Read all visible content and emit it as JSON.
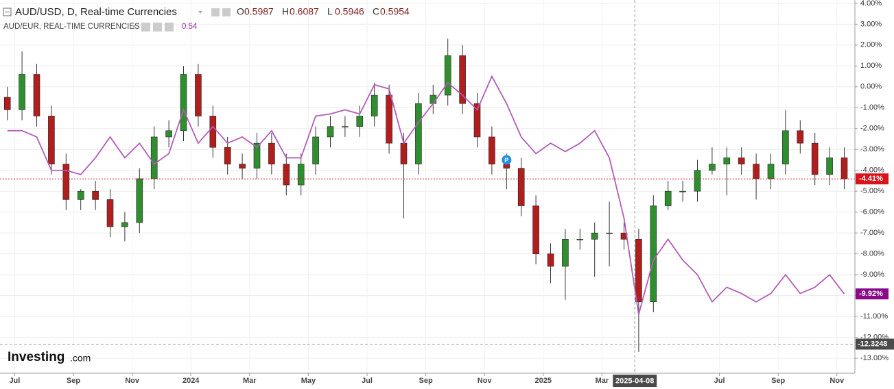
{
  "chart_data": {
    "type": "candlestick",
    "categories": [
      null,
      "Jul",
      null,
      null,
      null,
      "Sep",
      null,
      null,
      null,
      "Nov",
      null,
      null,
      null,
      "2024",
      null,
      null,
      null,
      "Mar",
      null,
      null,
      null,
      "May",
      null,
      null,
      null,
      "Jul",
      null,
      null,
      null,
      "Sep",
      null,
      null,
      null,
      "Nov",
      null,
      null,
      null,
      "2025",
      null,
      null,
      null,
      "Mar",
      null,
      "2025-04-08",
      null,
      null,
      null,
      null,
      null,
      "Jul",
      null,
      null,
      null,
      "Sep",
      null,
      null,
      null,
      "Nov"
    ],
    "series": [
      {
        "name": "AUD/USD, D, Real-time Currencies",
        "type": "candlestick",
        "up_color": "#2f8f2f",
        "down_color": "#b01e1e",
        "wick_color": "#333333",
        "ohlc_legend": [
          {
            "label": "O",
            "value": 0.5987
          },
          {
            "label": "H",
            "value": 0.6087
          },
          {
            "label": "L",
            "value": 0.5946
          },
          {
            "label": "C",
            "value": 0.5954
          }
        ],
        "open": [
          -0.5,
          -1.1,
          0.6,
          -1.4,
          -3.7,
          -5.4,
          -5.0,
          -5.4,
          -6.7,
          -6.5,
          -4.4,
          -2.4,
          -2.1,
          0.6,
          -1.4,
          -2.9,
          -3.7,
          -3.9,
          -2.7,
          -3.7,
          -4.7,
          -3.7,
          -2.4,
          -1.9,
          -1.9,
          -1.4,
          -0.4,
          -2.7,
          -3.7,
          -0.8,
          -0.4,
          1.5,
          -0.8,
          -2.4,
          -3.7,
          -3.9,
          -5.7,
          -8.0,
          -8.6,
          -7.3,
          -7.3,
          -7.0,
          -7.0,
          -7.3,
          -10.3,
          -5.7,
          -5.0,
          -5.0,
          -4.0,
          -3.7,
          -3.4,
          -3.7,
          -4.4,
          -3.7,
          -2.1,
          -2.7,
          -4.2,
          -3.4
        ],
        "high": [
          0.0,
          1.7,
          1.1,
          -0.9,
          -3.2,
          -4.9,
          -4.5,
          -4.9,
          -6.0,
          -3.9,
          -1.9,
          -1.6,
          1.0,
          1.1,
          -0.9,
          -2.4,
          -3.2,
          -2.2,
          -2.2,
          -3.2,
          -3.2,
          -1.9,
          -1.4,
          -1.4,
          -0.9,
          0.2,
          0.1,
          -2.2,
          -0.3,
          0.1,
          2.3,
          2.0,
          -0.3,
          -1.9,
          -3.2,
          -3.4,
          -5.2,
          -7.5,
          -6.8,
          -6.8,
          -6.5,
          -5.5,
          -6.5,
          -6.8,
          -5.2,
          -4.5,
          -4.5,
          -3.5,
          -2.9,
          -2.9,
          -2.9,
          -3.2,
          -3.2,
          -1.1,
          -1.6,
          -2.2,
          -2.9,
          -2.9
        ],
        "low": [
          -1.6,
          -1.6,
          -1.9,
          -4.2,
          -5.9,
          -5.9,
          -5.9,
          -7.2,
          -7.4,
          -7.0,
          -4.9,
          -2.9,
          -2.6,
          -1.9,
          -3.4,
          -4.2,
          -4.4,
          -4.4,
          -4.2,
          -5.2,
          -5.2,
          -4.2,
          -2.9,
          -2.4,
          -2.4,
          -1.9,
          -3.2,
          -6.3,
          -4.2,
          -1.3,
          -0.9,
          -1.3,
          -2.9,
          -4.2,
          -4.9,
          -6.2,
          -8.5,
          -9.4,
          -10.2,
          -7.8,
          -9.1,
          -8.6,
          -7.8,
          -12.7,
          -10.8,
          -5.9,
          -5.5,
          -5.5,
          -4.2,
          -5.2,
          -4.2,
          -5.4,
          -4.9,
          -4.2,
          -3.2,
          -4.7,
          -4.7,
          -4.9
        ],
        "close": [
          -1.1,
          0.6,
          -1.4,
          -3.7,
          -5.4,
          -5.0,
          -5.4,
          -6.7,
          -6.5,
          -4.4,
          -2.4,
          -2.1,
          0.6,
          -1.4,
          -2.9,
          -3.7,
          -3.9,
          -2.7,
          -3.7,
          -4.7,
          -3.7,
          -2.4,
          -1.9,
          -1.9,
          -1.4,
          -0.4,
          -2.7,
          -3.7,
          -0.8,
          -0.4,
          1.5,
          -0.8,
          -2.4,
          -3.7,
          -3.9,
          -5.7,
          -8.0,
          -8.6,
          -7.3,
          -7.3,
          -7.0,
          -7.0,
          -7.3,
          -10.3,
          -5.7,
          -5.0,
          -5.0,
          -4.0,
          -3.7,
          -3.4,
          -3.7,
          -4.4,
          -3.7,
          -2.1,
          -2.7,
          -4.2,
          -3.4,
          -4.41
        ],
        "last_label": "-4.41%",
        "last_color": "#d9141c"
      },
      {
        "name": "AUD/EUR, REAL-TIME CURRENCIES",
        "type": "line",
        "color": "#b35cb8",
        "legend_value": 0.54,
        "values": [
          -2.1,
          -2.1,
          -2.4,
          -4.0,
          -4.0,
          -4.2,
          -3.4,
          -2.4,
          -3.4,
          -2.7,
          -3.7,
          -3.2,
          -1.1,
          -2.7,
          -1.9,
          -2.7,
          -2.4,
          -2.9,
          -2.1,
          -3.4,
          -3.4,
          -1.4,
          -1.3,
          -1.1,
          -1.3,
          0.1,
          -0.1,
          -2.7,
          -1.7,
          -0.8,
          0.2,
          -0.4,
          -1.1,
          0.5,
          -0.8,
          -2.4,
          -3.2,
          -2.7,
          -3.1,
          -2.7,
          -2.1,
          -3.4,
          -6.3,
          -10.9,
          -8.3,
          -7.3,
          -8.3,
          -9.0,
          -10.3,
          -9.6,
          -9.9,
          -10.3,
          -9.9,
          -9.0,
          -9.9,
          -9.6,
          -9.0,
          -9.92
        ],
        "last_label": "-9.92%",
        "last_color": "#8a0a8a"
      }
    ],
    "ylim": [
      -13.72,
      4.16
    ],
    "yticks": [
      {
        "value": 4,
        "label": "4.00%"
      },
      {
        "value": 3,
        "label": "3.00%"
      },
      {
        "value": 2,
        "label": "2.00%"
      },
      {
        "value": 1,
        "label": "1.00%"
      },
      {
        "value": 0,
        "label": "0.00%"
      },
      {
        "value": -1,
        "label": "-1.00%"
      },
      {
        "value": -2,
        "label": "-2.00%"
      },
      {
        "value": -3,
        "label": "-3.00%"
      },
      {
        "value": -4,
        "label": "-4.00%"
      },
      {
        "value": -5,
        "label": "-5.00%"
      },
      {
        "value": -6,
        "label": "-6.00%"
      },
      {
        "value": -7,
        "label": "-7.00%"
      },
      {
        "value": -8,
        "label": "-8.00%"
      },
      {
        "value": -9,
        "label": "-9.00%"
      },
      {
        "value": -10,
        "label": "-10.00%"
      },
      {
        "value": -11,
        "label": "-11.00%"
      },
      {
        "value": -12,
        "label": "-12.00%"
      },
      {
        "value": -13,
        "label": "-13.00%"
      }
    ],
    "grid": true,
    "crosshair_y": {
      "value": -12.3248,
      "label": "-12.3248"
    },
    "markers": [
      {
        "text": "P",
        "index": 34,
        "value": -3.5
      }
    ],
    "logo": {
      "brand": "Investing",
      "suffix": ".com"
    }
  }
}
